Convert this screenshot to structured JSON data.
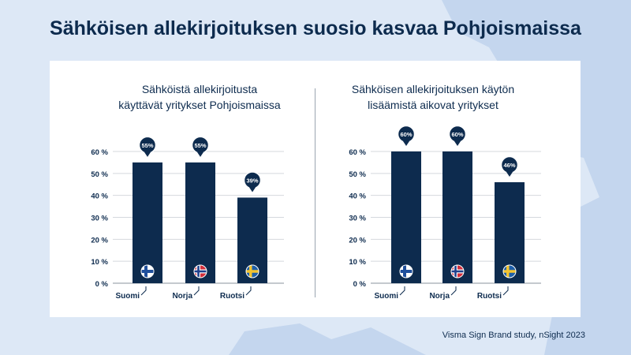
{
  "title": "Sähköisen allekirjoituksen suosio kasvaa Pohjoismaissa",
  "source": "Visma Sign Brand study, nSight 2023",
  "colors": {
    "bar": "#0d2b4e",
    "text": "#0d2b4e",
    "grid": "#d4d8dd",
    "background": "#dde8f6",
    "map": "#c4d6ee"
  },
  "chart_data": [
    {
      "type": "bar",
      "title_lines": [
        "Sähköistä allekirjoitusta",
        "käyttävät yritykset Pohjoismaissa"
      ],
      "categories": [
        "Suomi",
        "Norja",
        "Ruotsi"
      ],
      "flags": [
        "finland-flag",
        "norway-flag",
        "sweden-flag"
      ],
      "values": [
        55,
        55,
        39
      ],
      "labels": [
        "55%",
        "55%",
        "39%"
      ],
      "yticks": [
        "0 %",
        "10 %",
        "20 %",
        "30 %",
        "40 %",
        "50 %",
        "60 %"
      ],
      "ylim": [
        0,
        60
      ],
      "xlabel": "",
      "ylabel": ""
    },
    {
      "type": "bar",
      "title_lines": [
        "Sähköisen allekirjoituksen käytön",
        "lisäämistä aikovat yritykset"
      ],
      "categories": [
        "Suomi",
        "Norja",
        "Ruotsi"
      ],
      "flags": [
        "finland-flag",
        "norway-flag",
        "sweden-flag"
      ],
      "values": [
        60,
        60,
        46
      ],
      "labels": [
        "60%",
        "60%",
        "46%"
      ],
      "yticks": [
        "0 %",
        "10 %",
        "20 %",
        "30 %",
        "40 %",
        "50 %",
        "60 %"
      ],
      "ylim": [
        0,
        60
      ],
      "xlabel": "",
      "ylabel": ""
    }
  ]
}
